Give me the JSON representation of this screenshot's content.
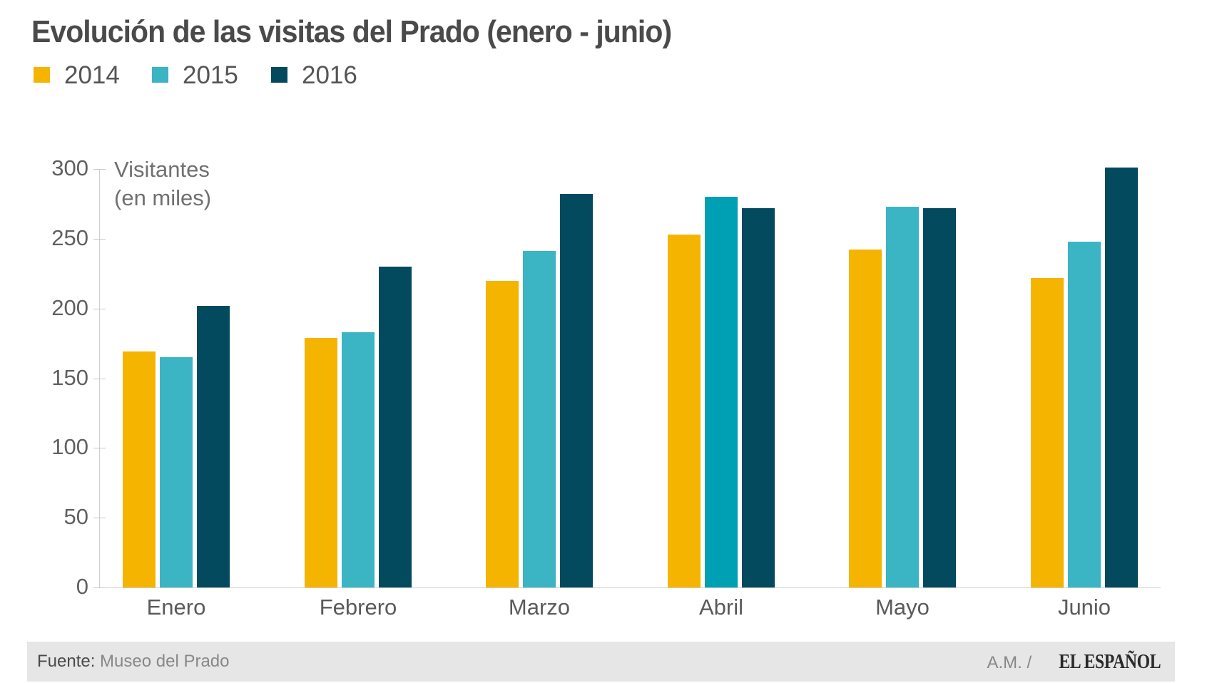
{
  "title": "Evolución de las visitas del Prado (enero - junio)",
  "legend": [
    {
      "label": "2014",
      "color": "#F5B400"
    },
    {
      "label": "2015",
      "color": "#3BB4C4"
    },
    {
      "label": "2016",
      "color": "#044A5E"
    }
  ],
  "axis": {
    "y_unit": "Visitantes\n(en miles)",
    "y_ticks": [
      "0",
      "50",
      "100",
      "150",
      "200",
      "250",
      "300"
    ]
  },
  "footer": {
    "source_label": "Fuente:",
    "source_value": " Museo del Prado",
    "author": "A.M. / ",
    "brand": "EL ESPAÑOL"
  },
  "chart_data": {
    "type": "bar",
    "title": "Evolución de las visitas del Prado (enero - junio)",
    "xlabel": "",
    "ylabel": "Visitantes (en miles)",
    "ylim": [
      0,
      300
    ],
    "yticks": [
      0,
      50,
      100,
      150,
      200,
      250,
      300
    ],
    "grid": false,
    "legend_position": "top-left",
    "categories": [
      "Enero",
      "Febrero",
      "Marzo",
      "Abril",
      "Mayo",
      "Junio"
    ],
    "series": [
      {
        "name": "2014",
        "color": "#F5B400",
        "values": [
          169,
          179,
          220,
          253,
          242,
          222
        ]
      },
      {
        "name": "2015",
        "color": "#3BB4C4",
        "values": [
          165,
          183,
          241,
          280,
          273,
          248
        ]
      },
      {
        "name": "2016",
        "color": "#044A5E",
        "values": [
          202,
          230,
          282,
          272,
          272,
          301
        ]
      }
    ],
    "highlight": {
      "category": "Abril",
      "series": "2015",
      "color": "#00A0B4"
    },
    "source": "Fuente: Museo del Prado",
    "credit": "A.M. / EL ESPAÑOL"
  }
}
